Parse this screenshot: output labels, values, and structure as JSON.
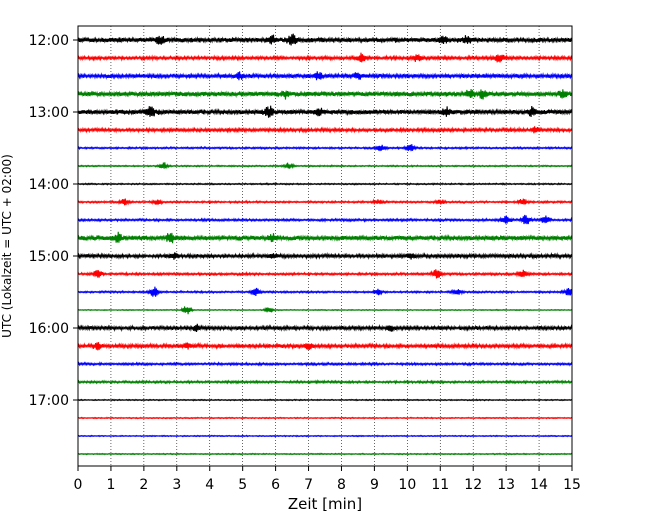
{
  "chart_data": {
    "type": "line",
    "subtype": "helicorder",
    "title": "",
    "xlabel": "Zeit  [min]",
    "ylabel": "UTC (Lokalzeit = UTC + 02:00)",
    "xlim": [
      0,
      15
    ],
    "x_ticks": [
      "0",
      "1",
      "2",
      "3",
      "4",
      "5",
      "6",
      "7",
      "8",
      "9",
      "10",
      "11",
      "12",
      "13",
      "14",
      "15"
    ],
    "y_ticks": [
      "12:00",
      "13:00",
      "14:00",
      "15:00",
      "16:00",
      "17:00"
    ],
    "grid": "vertical-dotted",
    "color_cycle": [
      "#000000",
      "#ff0000",
      "#0000ff",
      "#008000"
    ],
    "trace_interval_minutes": 15,
    "traces": [
      {
        "start": "12:00",
        "color": "#000000",
        "base_amplitude": 0.55,
        "bursts": [
          [
            2.5,
            0.6
          ],
          [
            5.9,
            0.6
          ],
          [
            6.5,
            0.9
          ],
          [
            11.1,
            0.6
          ],
          [
            11.8,
            0.6
          ]
        ]
      },
      {
        "start": "12:15",
        "color": "#ff0000",
        "base_amplitude": 0.35,
        "bursts": [
          [
            8.6,
            0.8
          ],
          [
            10.3,
            0.6
          ],
          [
            12.8,
            0.8
          ]
        ]
      },
      {
        "start": "12:30",
        "color": "#0000ff",
        "base_amplitude": 0.45,
        "bursts": [
          [
            4.9,
            0.6
          ],
          [
            7.3,
            0.6
          ],
          [
            8.5,
            0.6
          ]
        ]
      },
      {
        "start": "12:45",
        "color": "#008000",
        "base_amplitude": 0.55,
        "bursts": [
          [
            6.3,
            0.6
          ],
          [
            11.9,
            0.7
          ],
          [
            12.3,
            0.7
          ],
          [
            14.7,
            0.6
          ]
        ]
      },
      {
        "start": "13:00",
        "color": "#000000",
        "base_amplitude": 0.55,
        "bursts": [
          [
            2.2,
            1.0
          ],
          [
            5.8,
            0.9
          ],
          [
            7.3,
            0.9
          ],
          [
            11.2,
            0.8
          ],
          [
            13.8,
            0.9
          ]
        ]
      },
      {
        "start": "13:15",
        "color": "#ff0000",
        "base_amplitude": 0.35,
        "bursts": [
          [
            13.9,
            0.6
          ]
        ]
      },
      {
        "start": "13:30",
        "color": "#0000ff",
        "base_amplitude": 0.2,
        "bursts": [
          [
            9.2,
            0.6
          ],
          [
            10.1,
            0.8
          ]
        ]
      },
      {
        "start": "13:45",
        "color": "#008000",
        "base_amplitude": 0.15,
        "bursts": [
          [
            2.6,
            0.8
          ],
          [
            6.4,
            0.7
          ]
        ]
      },
      {
        "start": "14:00",
        "color": "#000000",
        "base_amplitude": 0.15,
        "bursts": []
      },
      {
        "start": "14:15",
        "color": "#ff0000",
        "base_amplitude": 0.2,
        "bursts": [
          [
            1.4,
            0.6
          ],
          [
            2.4,
            0.5
          ],
          [
            9.1,
            0.5
          ],
          [
            11.0,
            0.5
          ],
          [
            13.5,
            0.6
          ]
        ]
      },
      {
        "start": "14:30",
        "color": "#0000ff",
        "base_amplitude": 0.25,
        "bursts": [
          [
            13.0,
            0.8
          ],
          [
            13.6,
            0.9
          ],
          [
            14.2,
            0.8
          ]
        ]
      },
      {
        "start": "14:45",
        "color": "#008000",
        "base_amplitude": 0.55,
        "bursts": [
          [
            1.2,
            0.8
          ],
          [
            2.8,
            0.9
          ],
          [
            5.9,
            0.6
          ]
        ]
      },
      {
        "start": "15:00",
        "color": "#000000",
        "base_amplitude": 0.4,
        "bursts": [
          [
            2.9,
            0.6
          ],
          [
            5.9,
            0.5
          ],
          [
            10.1,
            0.5
          ]
        ]
      },
      {
        "start": "15:15",
        "color": "#ff0000",
        "base_amplitude": 0.25,
        "bursts": [
          [
            0.6,
            0.9
          ],
          [
            10.9,
            0.8
          ],
          [
            13.5,
            0.8
          ]
        ]
      },
      {
        "start": "15:30",
        "color": "#0000ff",
        "base_amplitude": 0.2,
        "bursts": [
          [
            2.3,
            1.1
          ],
          [
            5.4,
            0.7
          ],
          [
            9.1,
            0.6
          ],
          [
            11.5,
            0.6
          ],
          [
            14.9,
            0.7
          ]
        ]
      },
      {
        "start": "15:45",
        "color": "#008000",
        "base_amplitude": 0.1,
        "bursts": [
          [
            3.3,
            0.9
          ],
          [
            5.8,
            0.6
          ]
        ]
      },
      {
        "start": "16:00",
        "color": "#000000",
        "base_amplitude": 0.4,
        "bursts": [
          [
            3.6,
            0.5
          ],
          [
            9.5,
            0.5
          ]
        ]
      },
      {
        "start": "16:15",
        "color": "#ff0000",
        "base_amplitude": 0.4,
        "bursts": [
          [
            0.6,
            0.6
          ],
          [
            3.3,
            0.5
          ],
          [
            7.0,
            0.5
          ]
        ]
      },
      {
        "start": "16:30",
        "color": "#0000ff",
        "base_amplitude": 0.25,
        "bursts": []
      },
      {
        "start": "16:45",
        "color": "#008000",
        "base_amplitude": 0.25,
        "bursts": []
      },
      {
        "start": "17:00",
        "color": "#000000",
        "base_amplitude": 0.12,
        "bursts": []
      },
      {
        "start": "17:15",
        "color": "#ff0000",
        "base_amplitude": 0.12,
        "bursts": []
      },
      {
        "start": "17:30",
        "color": "#0000ff",
        "base_amplitude": 0.12,
        "bursts": []
      },
      {
        "start": "17:45",
        "color": "#008000",
        "base_amplitude": 0.12,
        "bursts": []
      }
    ]
  }
}
